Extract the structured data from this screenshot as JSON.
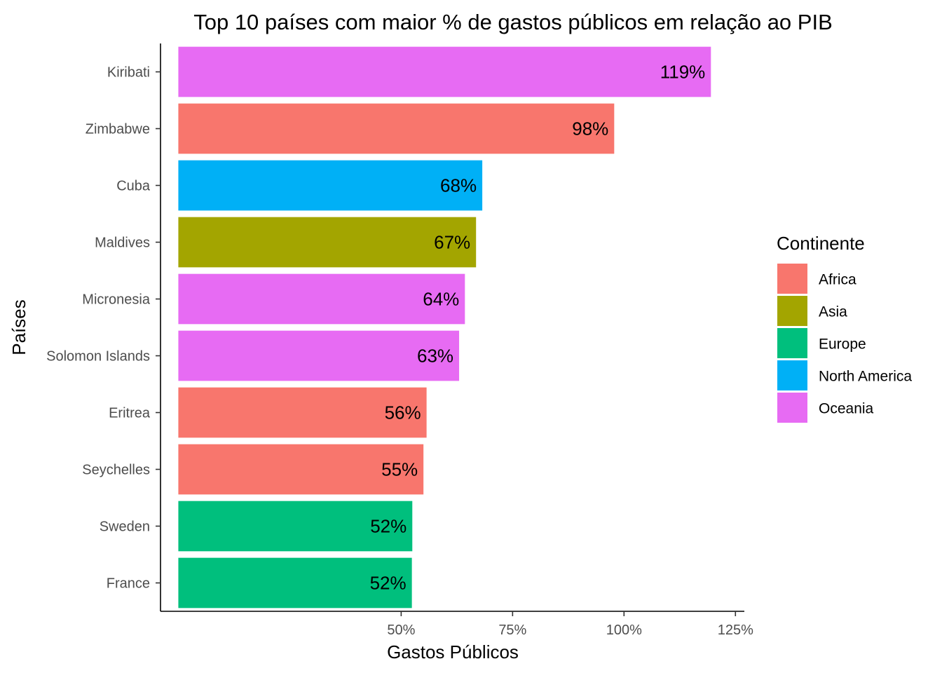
{
  "chart_data": {
    "type": "bar",
    "orientation": "horizontal",
    "title": "Top 10 países com maior % de gastos públicos em relação ao PIB",
    "xlabel": "Gastos Públicos",
    "ylabel": "Países",
    "x_ticks": [
      {
        "value": 50,
        "label": "50%"
      },
      {
        "value": 75,
        "label": "75%"
      },
      {
        "value": 100,
        "label": "100%"
      },
      {
        "value": 125,
        "label": "125%"
      }
    ],
    "xlim": [
      -4,
      127
    ],
    "bar_base": 0,
    "grid": false,
    "legend": {
      "title": "Continente",
      "position": "right",
      "entries": [
        {
          "name": "Africa",
          "color": "#F8766D"
        },
        {
          "name": "Asia",
          "color": "#A3A500"
        },
        {
          "name": "Europe",
          "color": "#00BF7D"
        },
        {
          "name": "North America",
          "color": "#00B0F6"
        },
        {
          "name": "Oceania",
          "color": "#E76BF3"
        }
      ]
    },
    "bars": [
      {
        "category": "Kiribati",
        "value": 119.5,
        "label": "119%",
        "continent": "Oceania"
      },
      {
        "category": "Zimbabwe",
        "value": 97.8,
        "label": "98%",
        "continent": "Africa"
      },
      {
        "category": "Cuba",
        "value": 68.2,
        "label": "68%",
        "continent": "North America"
      },
      {
        "category": "Maldives",
        "value": 66.8,
        "label": "67%",
        "continent": "Asia"
      },
      {
        "category": "Micronesia",
        "value": 64.3,
        "label": "64%",
        "continent": "Oceania"
      },
      {
        "category": "Solomon Islands",
        "value": 63.0,
        "label": "63%",
        "continent": "Oceania"
      },
      {
        "category": "Eritrea",
        "value": 55.7,
        "label": "56%",
        "continent": "Africa"
      },
      {
        "category": "Seychelles",
        "value": 55.0,
        "label": "55%",
        "continent": "Africa"
      },
      {
        "category": "Sweden",
        "value": 52.5,
        "label": "52%",
        "continent": "Europe"
      },
      {
        "category": "France",
        "value": 52.4,
        "label": "52%",
        "continent": "Europe"
      }
    ]
  }
}
